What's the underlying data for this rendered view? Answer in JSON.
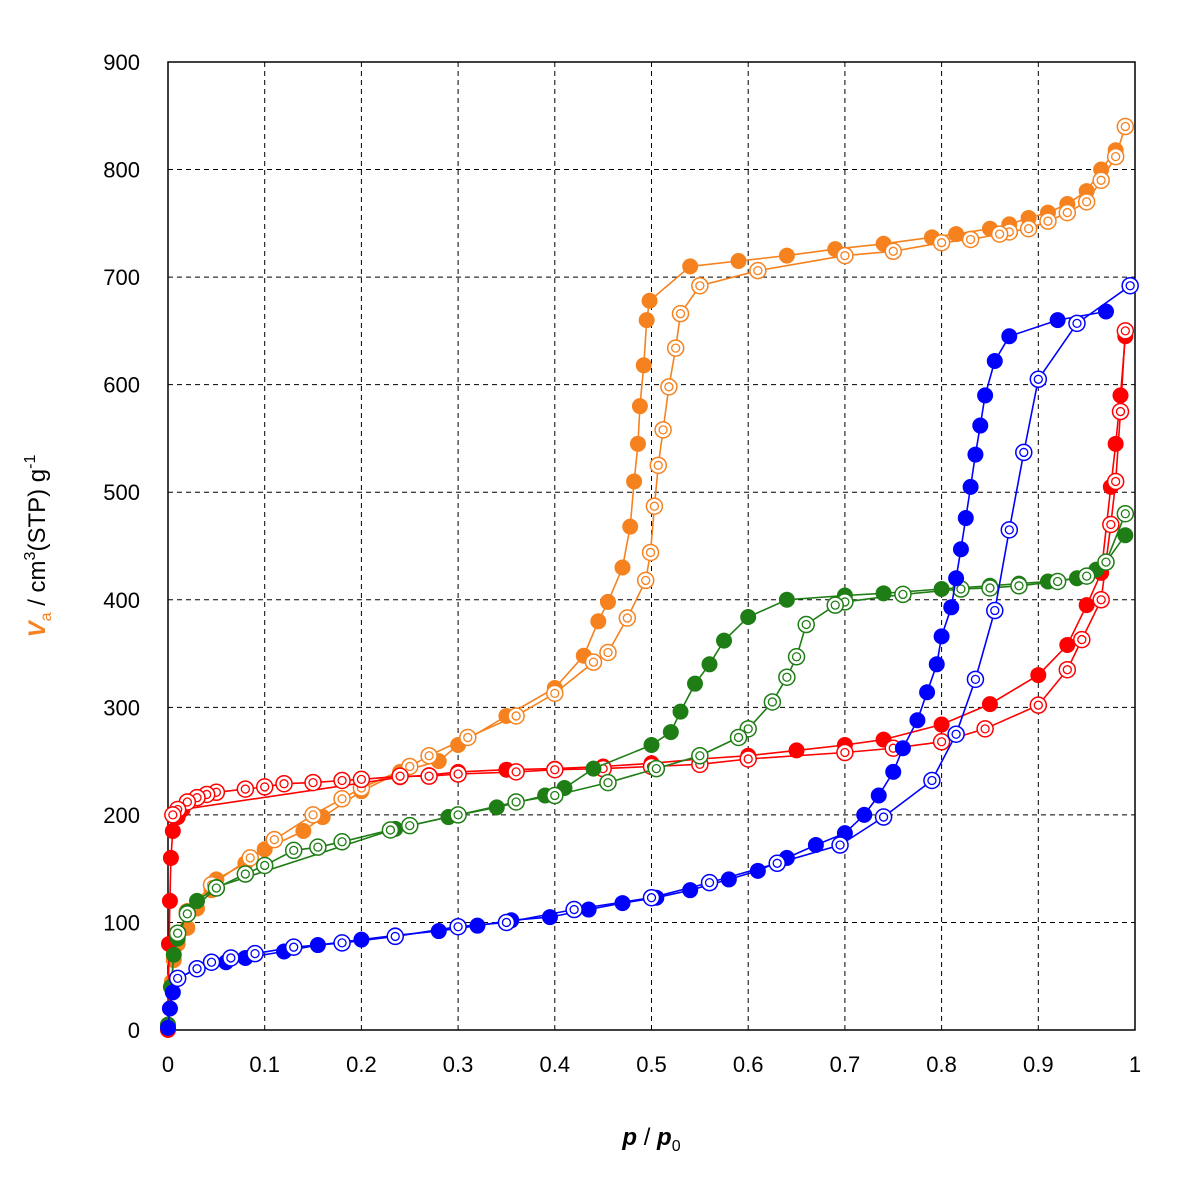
{
  "chart_data": {
    "type": "scatter",
    "xlabel_var": "p",
    "xlabel_sep": " / ",
    "xlabel_var2": "p",
    "xlabel_sub": "0",
    "ylabel_var": "V",
    "ylabel_sub": "a",
    "ylabel_unit": " / cm",
    "ylabel_sup": "3",
    "ylabel_unit2": "(STP) g",
    "ylabel_sup2": "-1",
    "xlim": [
      0,
      1
    ],
    "ylim": [
      0,
      900
    ],
    "xticks": [
      0,
      0.1,
      0.2,
      0.3,
      0.4,
      0.5,
      0.6,
      0.7,
      0.8,
      0.9,
      1
    ],
    "xtick_labels": [
      "0",
      "0.1",
      "0.2",
      "0.3",
      "0.4",
      "0.5",
      "0.6",
      "0.7",
      "0.8",
      "0.9",
      "1"
    ],
    "yticks": [
      0,
      100,
      200,
      300,
      400,
      500,
      600,
      700,
      800,
      900
    ],
    "ytick_labels": [
      "0",
      "100",
      "200",
      "300",
      "400",
      "500",
      "600",
      "700",
      "800",
      "900"
    ],
    "grid": true,
    "ylabel_color": "#f5821f",
    "series": [
      {
        "color": "#f5821f",
        "marker": "filled",
        "points": [
          [
            0.0,
            5
          ],
          [
            0.002,
            20
          ],
          [
            0.004,
            45
          ],
          [
            0.006,
            65
          ],
          [
            0.01,
            80
          ],
          [
            0.02,
            95
          ],
          [
            0.03,
            113
          ],
          [
            0.045,
            130
          ],
          [
            0.05,
            140
          ],
          [
            0.08,
            155
          ],
          [
            0.1,
            168
          ],
          [
            0.14,
            185
          ],
          [
            0.16,
            198
          ],
          [
            0.2,
            222
          ],
          [
            0.24,
            240
          ],
          [
            0.28,
            250
          ],
          [
            0.3,
            265
          ],
          [
            0.35,
            292
          ],
          [
            0.4,
            318
          ],
          [
            0.43,
            348
          ],
          [
            0.445,
            380
          ],
          [
            0.455,
            398
          ],
          [
            0.47,
            430
          ],
          [
            0.478,
            468
          ],
          [
            0.482,
            510
          ],
          [
            0.486,
            545
          ],
          [
            0.488,
            580
          ],
          [
            0.492,
            618
          ],
          [
            0.495,
            660
          ],
          [
            0.498,
            678
          ],
          [
            0.54,
            710
          ],
          [
            0.59,
            715
          ],
          [
            0.64,
            720
          ],
          [
            0.69,
            726
          ],
          [
            0.74,
            731
          ],
          [
            0.79,
            737
          ],
          [
            0.815,
            740
          ],
          [
            0.85,
            745
          ],
          [
            0.87,
            749
          ],
          [
            0.89,
            755
          ],
          [
            0.91,
            760
          ],
          [
            0.93,
            768
          ],
          [
            0.95,
            780
          ],
          [
            0.965,
            800
          ],
          [
            0.98,
            818
          ]
        ]
      },
      {
        "color": "#f5821f",
        "marker": "open",
        "points": [
          [
            0.99,
            840
          ],
          [
            0.98,
            812
          ],
          [
            0.965,
            790
          ],
          [
            0.95,
            770
          ],
          [
            0.93,
            760
          ],
          [
            0.91,
            752
          ],
          [
            0.89,
            745
          ],
          [
            0.87,
            742
          ],
          [
            0.86,
            740
          ],
          [
            0.83,
            735
          ],
          [
            0.8,
            732
          ],
          [
            0.75,
            724
          ],
          [
            0.7,
            720
          ],
          [
            0.61,
            706
          ],
          [
            0.55,
            692
          ],
          [
            0.53,
            666
          ],
          [
            0.525,
            634
          ],
          [
            0.518,
            598
          ],
          [
            0.512,
            558
          ],
          [
            0.507,
            525
          ],
          [
            0.503,
            487
          ],
          [
            0.499,
            444
          ],
          [
            0.494,
            418
          ],
          [
            0.475,
            383
          ],
          [
            0.455,
            351
          ],
          [
            0.44,
            342
          ],
          [
            0.4,
            313
          ],
          [
            0.36,
            292
          ],
          [
            0.31,
            272
          ],
          [
            0.27,
            255
          ],
          [
            0.25,
            245
          ],
          [
            0.2,
            225
          ],
          [
            0.18,
            215
          ],
          [
            0.15,
            200
          ],
          [
            0.11,
            177
          ],
          [
            0.085,
            160
          ],
          [
            0.045,
            135
          ],
          [
            0.02,
            110
          ]
        ]
      },
      {
        "color": "#ff0000",
        "marker": "filled",
        "points": [
          [
            0.0,
            0
          ],
          [
            0.001,
            80
          ],
          [
            0.002,
            120
          ],
          [
            0.003,
            160
          ],
          [
            0.005,
            185
          ],
          [
            0.01,
            198
          ],
          [
            0.015,
            205
          ],
          [
            0.24,
            235
          ],
          [
            0.27,
            237
          ],
          [
            0.3,
            240
          ],
          [
            0.35,
            242
          ],
          [
            0.4,
            243
          ],
          [
            0.45,
            245
          ],
          [
            0.5,
            248
          ],
          [
            0.55,
            252
          ],
          [
            0.6,
            255
          ],
          [
            0.65,
            260
          ],
          [
            0.7,
            265
          ],
          [
            0.74,
            270
          ],
          [
            0.8,
            284
          ],
          [
            0.85,
            303
          ],
          [
            0.9,
            330
          ],
          [
            0.93,
            358
          ],
          [
            0.95,
            395
          ],
          [
            0.965,
            425
          ],
          [
            0.975,
            505
          ],
          [
            0.98,
            545
          ],
          [
            0.985,
            590
          ],
          [
            0.99,
            645
          ]
        ]
      },
      {
        "color": "#ff0000",
        "marker": "open",
        "points": [
          [
            0.99,
            650
          ],
          [
            0.985,
            575
          ],
          [
            0.98,
            510
          ],
          [
            0.975,
            470
          ],
          [
            0.965,
            400
          ],
          [
            0.945,
            363
          ],
          [
            0.93,
            335
          ],
          [
            0.9,
            302
          ],
          [
            0.845,
            280
          ],
          [
            0.8,
            268
          ],
          [
            0.75,
            262
          ],
          [
            0.7,
            258
          ],
          [
            0.6,
            252
          ],
          [
            0.55,
            247
          ],
          [
            0.5,
            245
          ],
          [
            0.45,
            243
          ],
          [
            0.4,
            242
          ],
          [
            0.36,
            240
          ],
          [
            0.3,
            238
          ],
          [
            0.27,
            236
          ],
          [
            0.24,
            236
          ],
          [
            0.2,
            233
          ],
          [
            0.18,
            232
          ],
          [
            0.15,
            230
          ],
          [
            0.12,
            229
          ],
          [
            0.1,
            226
          ],
          [
            0.08,
            224
          ],
          [
            0.05,
            221
          ],
          [
            0.04,
            219
          ],
          [
            0.03,
            216
          ],
          [
            0.02,
            212
          ],
          [
            0.01,
            205
          ],
          [
            0.005,
            200
          ]
        ]
      },
      {
        "color": "#1e7d14",
        "marker": "filled",
        "points": [
          [
            0.0,
            5
          ],
          [
            0.003,
            40
          ],
          [
            0.006,
            70
          ],
          [
            0.01,
            85
          ],
          [
            0.02,
            110
          ],
          [
            0.03,
            120
          ],
          [
            0.05,
            133
          ],
          [
            0.235,
            187
          ],
          [
            0.29,
            198
          ],
          [
            0.34,
            207
          ],
          [
            0.39,
            218
          ],
          [
            0.41,
            225
          ],
          [
            0.44,
            243
          ],
          [
            0.5,
            265
          ],
          [
            0.52,
            277
          ],
          [
            0.53,
            296
          ],
          [
            0.545,
            322
          ],
          [
            0.56,
            340
          ],
          [
            0.575,
            362
          ],
          [
            0.6,
            384
          ],
          [
            0.64,
            400
          ],
          [
            0.7,
            404
          ],
          [
            0.74,
            406
          ],
          [
            0.8,
            410
          ],
          [
            0.85,
            413
          ],
          [
            0.88,
            415
          ],
          [
            0.91,
            417
          ],
          [
            0.94,
            420
          ],
          [
            0.96,
            428
          ],
          [
            0.97,
            435
          ],
          [
            0.99,
            460
          ]
        ]
      },
      {
        "color": "#1e7d14",
        "marker": "open",
        "points": [
          [
            0.99,
            480
          ],
          [
            0.97,
            435
          ],
          [
            0.95,
            422
          ],
          [
            0.92,
            417
          ],
          [
            0.88,
            413
          ],
          [
            0.85,
            411
          ],
          [
            0.82,
            410
          ],
          [
            0.76,
            405
          ],
          [
            0.7,
            398
          ],
          [
            0.69,
            395
          ],
          [
            0.66,
            377
          ],
          [
            0.65,
            347
          ],
          [
            0.64,
            328
          ],
          [
            0.625,
            305
          ],
          [
            0.6,
            280
          ],
          [
            0.59,
            272
          ],
          [
            0.55,
            255
          ],
          [
            0.505,
            243
          ],
          [
            0.455,
            230
          ],
          [
            0.4,
            218
          ],
          [
            0.36,
            212
          ],
          [
            0.3,
            200
          ],
          [
            0.25,
            190
          ],
          [
            0.23,
            186
          ],
          [
            0.18,
            175
          ],
          [
            0.155,
            170
          ],
          [
            0.13,
            167
          ],
          [
            0.1,
            153
          ],
          [
            0.08,
            145
          ],
          [
            0.05,
            132
          ],
          [
            0.02,
            108
          ],
          [
            0.01,
            90
          ]
        ]
      },
      {
        "color": "#0000ff",
        "marker": "filled",
        "points": [
          [
            0.0,
            2
          ],
          [
            0.002,
            20
          ],
          [
            0.005,
            35
          ],
          [
            0.01,
            48
          ],
          [
            0.03,
            57
          ],
          [
            0.06,
            63
          ],
          [
            0.08,
            67
          ],
          [
            0.12,
            73
          ],
          [
            0.155,
            79
          ],
          [
            0.2,
            84
          ],
          [
            0.235,
            88
          ],
          [
            0.28,
            92
          ],
          [
            0.32,
            97
          ],
          [
            0.355,
            102
          ],
          [
            0.395,
            105
          ],
          [
            0.435,
            112
          ],
          [
            0.47,
            118
          ],
          [
            0.505,
            123
          ],
          [
            0.54,
            130
          ],
          [
            0.58,
            140
          ],
          [
            0.61,
            148
          ],
          [
            0.64,
            160
          ],
          [
            0.67,
            172
          ],
          [
            0.7,
            183
          ],
          [
            0.72,
            200
          ],
          [
            0.735,
            218
          ],
          [
            0.75,
            240
          ],
          [
            0.76,
            262
          ],
          [
            0.775,
            288
          ],
          [
            0.785,
            314
          ],
          [
            0.795,
            340
          ],
          [
            0.8,
            366
          ],
          [
            0.81,
            393
          ],
          [
            0.815,
            420
          ],
          [
            0.82,
            447
          ],
          [
            0.825,
            476
          ],
          [
            0.83,
            505
          ],
          [
            0.835,
            535
          ],
          [
            0.84,
            562
          ],
          [
            0.845,
            590
          ],
          [
            0.855,
            622
          ],
          [
            0.87,
            645
          ],
          [
            0.92,
            660
          ],
          [
            0.97,
            668
          ]
        ]
      },
      {
        "color": "#0000ff",
        "marker": "open",
        "points": [
          [
            0.995,
            692
          ],
          [
            0.94,
            657
          ],
          [
            0.9,
            605
          ],
          [
            0.885,
            537
          ],
          [
            0.87,
            465
          ],
          [
            0.855,
            390
          ],
          [
            0.835,
            326
          ],
          [
            0.815,
            275
          ],
          [
            0.79,
            232
          ],
          [
            0.74,
            198
          ],
          [
            0.695,
            172
          ],
          [
            0.63,
            155
          ],
          [
            0.56,
            137
          ],
          [
            0.5,
            123
          ],
          [
            0.42,
            112
          ],
          [
            0.35,
            100
          ],
          [
            0.3,
            96
          ],
          [
            0.235,
            87
          ],
          [
            0.18,
            81
          ],
          [
            0.13,
            77
          ],
          [
            0.09,
            71
          ],
          [
            0.065,
            67
          ],
          [
            0.045,
            63
          ],
          [
            0.03,
            57
          ],
          [
            0.01,
            48
          ]
        ]
      }
    ]
  }
}
